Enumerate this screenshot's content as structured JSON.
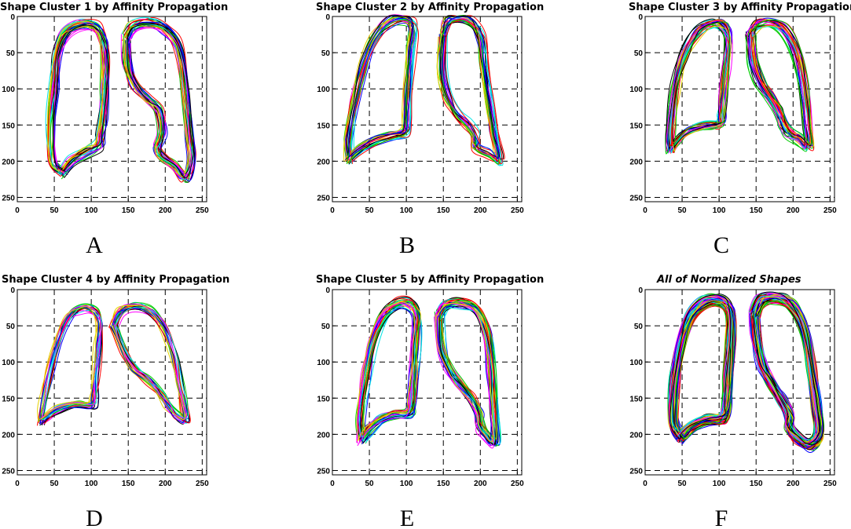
{
  "colors": [
    "#ff0000",
    "#00cc00",
    "#0000ff",
    "#00e5e5",
    "#ff00ff",
    "#e5d000",
    "#000000"
  ],
  "chart_data": [
    {
      "type": "line",
      "title": "Shape Cluster 1 by Affinity Propagation",
      "panel_label": "A",
      "xlim": [
        0,
        256
      ],
      "ylim": [
        0,
        256
      ],
      "y_inverted": true,
      "grid": true,
      "x_ticks": [
        0,
        50,
        100,
        150,
        200,
        250
      ],
      "y_ticks": [
        0,
        50,
        100,
        150,
        200,
        250
      ],
      "tick_labels_x": [
        "0",
        "50",
        "100",
        "150",
        "200",
        "250"
      ],
      "tick_labels_y": [
        "0",
        "50",
        "100",
        "150",
        "200",
        "250"
      ],
      "n_series": 28,
      "left_lung": [
        [
          62,
          215
        ],
        [
          48,
          200
        ],
        [
          46,
          150
        ],
        [
          50,
          100
        ],
        [
          55,
          55
        ],
        [
          65,
          25
        ],
        [
          85,
          12
        ],
        [
          105,
          14
        ],
        [
          116,
          30
        ],
        [
          119,
          60
        ],
        [
          118,
          100
        ],
        [
          116,
          140
        ],
        [
          112,
          165
        ],
        [
          110,
          178
        ],
        [
          95,
          186
        ],
        [
          75,
          198
        ],
        [
          62,
          215
        ]
      ],
      "right_lung": [
        [
          148,
          30
        ],
        [
          158,
          14
        ],
        [
          180,
          10
        ],
        [
          200,
          17
        ],
        [
          218,
          42
        ],
        [
          228,
          100
        ],
        [
          233,
          160
        ],
        [
          235,
          195
        ],
        [
          228,
          222
        ],
        [
          212,
          205
        ],
        [
          195,
          192
        ],
        [
          190,
          180
        ],
        [
          196,
          160
        ],
        [
          192,
          130
        ],
        [
          178,
          115
        ],
        [
          160,
          95
        ],
        [
          150,
          70
        ],
        [
          148,
          30
        ]
      ]
    },
    {
      "type": "line",
      "title": "Shape Cluster 2 by Affinity Propagation",
      "panel_label": "B",
      "xlim": [
        0,
        256
      ],
      "ylim": [
        0,
        256
      ],
      "y_inverted": true,
      "grid": true,
      "x_ticks": [
        0,
        50,
        100,
        150,
        200,
        250
      ],
      "y_ticks": [
        0,
        50,
        100,
        150,
        200,
        250
      ],
      "tick_labels_x": [
        "0",
        "50",
        "100",
        "150",
        "200",
        "250"
      ],
      "tick_labels_y": [
        "0",
        "50",
        "100",
        "150",
        "200",
        "250"
      ],
      "n_series": 24,
      "left_lung": [
        [
          22,
          198
        ],
        [
          22,
          170
        ],
        [
          30,
          120
        ],
        [
          42,
          70
        ],
        [
          58,
          30
        ],
        [
          78,
          8
        ],
        [
          98,
          4
        ],
        [
          108,
          15
        ],
        [
          106,
          50
        ],
        [
          102,
          100
        ],
        [
          100,
          140
        ],
        [
          98,
          160
        ],
        [
          80,
          164
        ],
        [
          55,
          172
        ],
        [
          35,
          185
        ],
        [
          22,
          198
        ]
      ],
      "right_lung": [
        [
          150,
          25
        ],
        [
          155,
          8
        ],
        [
          170,
          3
        ],
        [
          188,
          8
        ],
        [
          200,
          30
        ],
        [
          205,
          70
        ],
        [
          212,
          120
        ],
        [
          218,
          160
        ],
        [
          225,
          198
        ],
        [
          210,
          190
        ],
        [
          195,
          182
        ],
        [
          192,
          165
        ],
        [
          183,
          150
        ],
        [
          168,
          135
        ],
        [
          155,
          110
        ],
        [
          148,
          75
        ],
        [
          150,
          25
        ]
      ]
    },
    {
      "type": "line",
      "title": "Shape Cluster 3 by Affinity Propagation",
      "panel_label": "C",
      "xlim": [
        0,
        256
      ],
      "ylim": [
        0,
        256
      ],
      "y_inverted": true,
      "grid": true,
      "x_ticks": [
        0,
        50,
        100,
        150,
        200,
        250
      ],
      "y_ticks": [
        0,
        50,
        100,
        150,
        200,
        250
      ],
      "tick_labels_x": [
        "0",
        "50",
        "100",
        "150",
        "200",
        "250"
      ],
      "tick_labels_y": [
        "0",
        "50",
        "100",
        "150",
        "200",
        "250"
      ],
      "n_series": 30,
      "left_lung": [
        [
          35,
          185
        ],
        [
          34,
          160
        ],
        [
          40,
          100
        ],
        [
          52,
          55
        ],
        [
          70,
          22
        ],
        [
          90,
          10
        ],
        [
          105,
          12
        ],
        [
          112,
          30
        ],
        [
          110,
          70
        ],
        [
          106,
          110
        ],
        [
          103,
          140
        ],
        [
          100,
          150
        ],
        [
          80,
          152
        ],
        [
          60,
          158
        ],
        [
          45,
          170
        ],
        [
          35,
          185
        ]
      ],
      "right_lung": [
        [
          142,
          25
        ],
        [
          152,
          10
        ],
        [
          170,
          8
        ],
        [
          188,
          18
        ],
        [
          205,
          50
        ],
        [
          215,
          100
        ],
        [
          220,
          150
        ],
        [
          222,
          180
        ],
        [
          208,
          170
        ],
        [
          195,
          162
        ],
        [
          187,
          150
        ],
        [
          180,
          130
        ],
        [
          168,
          110
        ],
        [
          155,
          90
        ],
        [
          145,
          60
        ],
        [
          142,
          25
        ]
      ]
    },
    {
      "type": "line",
      "title": "Shape Cluster 4 by Affinity Propagation",
      "panel_label": "D",
      "xlim": [
        0,
        256
      ],
      "ylim": [
        0,
        256
      ],
      "y_inverted": true,
      "grid": true,
      "x_ticks": [
        0,
        50,
        100,
        150,
        200,
        250
      ],
      "y_ticks": [
        0,
        50,
        100,
        150,
        200,
        250
      ],
      "tick_labels_x": [
        "0",
        "50",
        "100",
        "150",
        "200",
        "250"
      ],
      "tick_labels_y": [
        "0",
        "50",
        "100",
        "150",
        "200",
        "250"
      ],
      "n_series": 20,
      "left_lung": [
        [
          32,
          182
        ],
        [
          35,
          160
        ],
        [
          45,
          110
        ],
        [
          55,
          70
        ],
        [
          68,
          38
        ],
        [
          85,
          25
        ],
        [
          102,
          25
        ],
        [
          112,
          42
        ],
        [
          110,
          80
        ],
        [
          106,
          120
        ],
        [
          104,
          150
        ],
        [
          100,
          160
        ],
        [
          80,
          158
        ],
        [
          55,
          165
        ],
        [
          40,
          175
        ],
        [
          32,
          182
        ]
      ],
      "right_lung": [
        [
          130,
          48
        ],
        [
          140,
          28
        ],
        [
          160,
          22
        ],
        [
          180,
          28
        ],
        [
          198,
          50
        ],
        [
          212,
          90
        ],
        [
          220,
          130
        ],
        [
          226,
          160
        ],
        [
          228,
          180
        ],
        [
          215,
          172
        ],
        [
          205,
          162
        ],
        [
          195,
          145
        ],
        [
          178,
          125
        ],
        [
          158,
          108
        ],
        [
          145,
          85
        ],
        [
          135,
          60
        ],
        [
          130,
          48
        ]
      ]
    },
    {
      "type": "line",
      "title": "Shape Cluster 5 by Affinity Propagation",
      "panel_label": "E",
      "xlim": [
        0,
        256
      ],
      "ylim": [
        0,
        256
      ],
      "y_inverted": true,
      "grid": true,
      "x_ticks": [
        0,
        50,
        100,
        150,
        200,
        250
      ],
      "y_ticks": [
        0,
        50,
        100,
        150,
        200,
        250
      ],
      "tick_labels_x": [
        "0",
        "50",
        "100",
        "150",
        "200",
        "250"
      ],
      "tick_labels_y": [
        "0",
        "50",
        "100",
        "150",
        "200",
        "250"
      ],
      "n_series": 34,
      "left_lung": [
        [
          40,
          208
        ],
        [
          38,
          180
        ],
        [
          45,
          120
        ],
        [
          55,
          70
        ],
        [
          70,
          35
        ],
        [
          88,
          20
        ],
        [
          105,
          20
        ],
        [
          115,
          35
        ],
        [
          113,
          75
        ],
        [
          110,
          120
        ],
        [
          108,
          150
        ],
        [
          105,
          170
        ],
        [
          85,
          172
        ],
        [
          65,
          180
        ],
        [
          50,
          192
        ],
        [
          40,
          208
        ]
      ],
      "right_lung": [
        [
          145,
          35
        ],
        [
          155,
          20
        ],
        [
          175,
          18
        ],
        [
          195,
          28
        ],
        [
          210,
          60
        ],
        [
          215,
          110
        ],
        [
          218,
          160
        ],
        [
          220,
          210
        ],
        [
          208,
          200
        ],
        [
          200,
          188
        ],
        [
          198,
          170
        ],
        [
          188,
          150
        ],
        [
          172,
          130
        ],
        [
          158,
          110
        ],
        [
          148,
          80
        ],
        [
          145,
          35
        ]
      ]
    },
    {
      "type": "line",
      "title": "All of Normalized Shapes",
      "panel_label": "F",
      "xlim": [
        0,
        256
      ],
      "ylim": [
        0,
        256
      ],
      "y_inverted": true,
      "grid": true,
      "x_ticks": [
        0,
        50,
        100,
        150,
        200,
        250
      ],
      "y_ticks": [
        0,
        50,
        100,
        150,
        200,
        250
      ],
      "tick_labels_x": [
        "0",
        "50",
        "100",
        "150",
        "200",
        "250"
      ],
      "tick_labels_y": [
        "0",
        "50",
        "100",
        "150",
        "200",
        "250"
      ],
      "n_series": 140,
      "left_lung": [
        [
          48,
          205
        ],
        [
          38,
          185
        ],
        [
          40,
          130
        ],
        [
          48,
          80
        ],
        [
          60,
          40
        ],
        [
          80,
          18
        ],
        [
          100,
          15
        ],
        [
          115,
          30
        ],
        [
          116,
          70
        ],
        [
          112,
          120
        ],
        [
          110,
          160
        ],
        [
          105,
          178
        ],
        [
          85,
          180
        ],
        [
          65,
          188
        ],
        [
          52,
          198
        ],
        [
          48,
          205
        ]
      ],
      "right_lung": [
        [
          148,
          35
        ],
        [
          158,
          15
        ],
        [
          178,
          12
        ],
        [
          198,
          22
        ],
        [
          215,
          55
        ],
        [
          225,
          110
        ],
        [
          232,
          165
        ],
        [
          235,
          200
        ],
        [
          222,
          215
        ],
        [
          205,
          205
        ],
        [
          195,
          192
        ],
        [
          195,
          175
        ],
        [
          185,
          155
        ],
        [
          170,
          130
        ],
        [
          158,
          105
        ],
        [
          150,
          70
        ],
        [
          148,
          35
        ]
      ]
    }
  ]
}
